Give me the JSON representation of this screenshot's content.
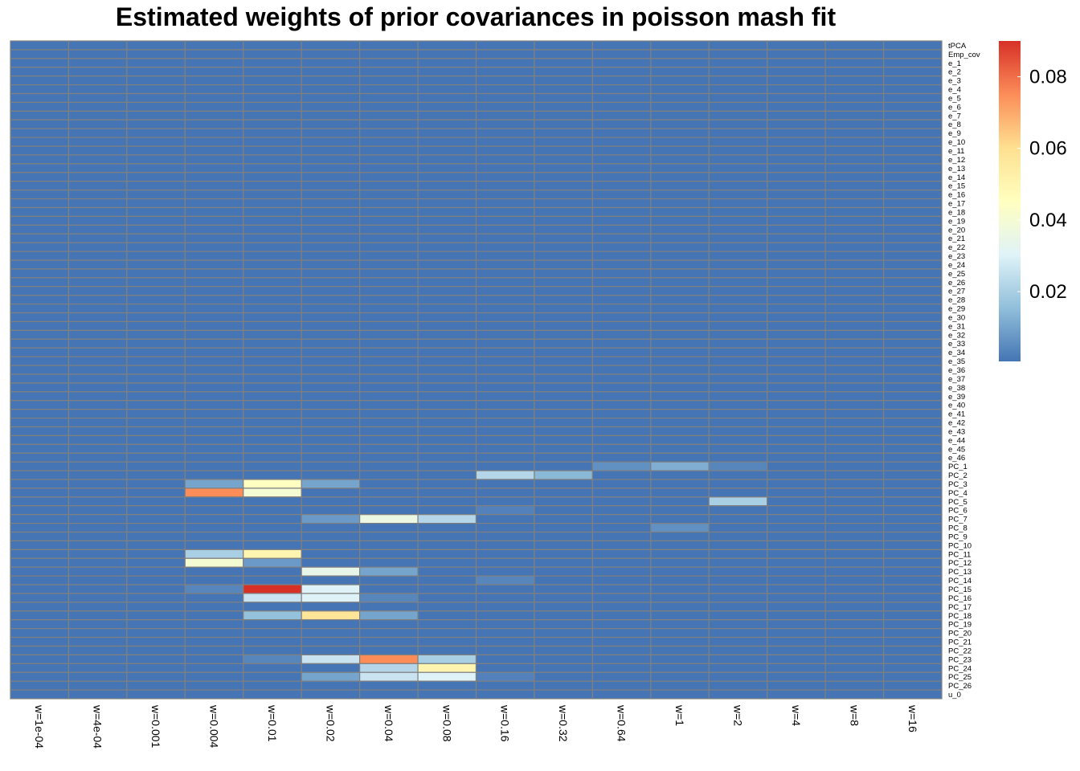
{
  "chart_data": {
    "type": "heatmap",
    "title": "Estimated weights of prior covariances in poisson mash fit",
    "columns": [
      "w=1e-04",
      "w=4e-04",
      "w=0.001",
      "w=0.004",
      "w=0.01",
      "w=0.02",
      "w=0.04",
      "w=0.08",
      "w=0.16",
      "w=0.32",
      "w=0.64",
      "w=1",
      "w=2",
      "w=4",
      "w=8",
      "w=16"
    ],
    "rows": [
      "tPCA",
      "Emp_cov",
      "e_1",
      "e_2",
      "e_3",
      "e_4",
      "e_5",
      "e_6",
      "e_7",
      "e_8",
      "e_9",
      "e_10",
      "e_11",
      "e_12",
      "e_13",
      "e_14",
      "e_15",
      "e_16",
      "e_17",
      "e_18",
      "e_19",
      "e_20",
      "e_21",
      "e_22",
      "e_23",
      "e_24",
      "e_25",
      "e_26",
      "e_27",
      "e_28",
      "e_29",
      "e_30",
      "e_31",
      "e_32",
      "e_33",
      "e_34",
      "e_35",
      "e_36",
      "e_37",
      "e_38",
      "e_39",
      "e_40",
      "e_41",
      "e_42",
      "e_43",
      "e_44",
      "e_45",
      "e_46",
      "PC_1",
      "PC_2",
      "PC_3",
      "PC_4",
      "PC_5",
      "PC_6",
      "PC_7",
      "PC_8",
      "PC_9",
      "PC_10",
      "PC_11",
      "PC_12",
      "PC_13",
      "PC_14",
      "PC_15",
      "PC_16",
      "PC_17",
      "PC_18",
      "PC_19",
      "PC_20",
      "PC_21",
      "PC_22",
      "PC_23",
      "PC_24",
      "PC_25",
      "PC_26",
      "u_0"
    ],
    "cells": [
      {
        "row": "PC_1",
        "col": "w=0.64",
        "value": 0.006
      },
      {
        "row": "PC_1",
        "col": "w=1",
        "value": 0.012
      },
      {
        "row": "PC_1",
        "col": "w=2",
        "value": 0.004
      },
      {
        "row": "PC_2",
        "col": "w=0.16",
        "value": 0.022
      },
      {
        "row": "PC_2",
        "col": "w=0.32",
        "value": 0.014
      },
      {
        "row": "PC_3",
        "col": "w=0.004",
        "value": 0.01
      },
      {
        "row": "PC_3",
        "col": "w=0.01",
        "value": 0.045
      },
      {
        "row": "PC_3",
        "col": "w=0.02",
        "value": 0.01
      },
      {
        "row": "PC_4",
        "col": "w=0.004",
        "value": 0.075
      },
      {
        "row": "PC_4",
        "col": "w=0.01",
        "value": 0.04
      },
      {
        "row": "PC_5",
        "col": "w=2",
        "value": 0.02
      },
      {
        "row": "PC_6",
        "col": "w=0.16",
        "value": 0.003
      },
      {
        "row": "PC_7",
        "col": "w=0.02",
        "value": 0.008
      },
      {
        "row": "PC_7",
        "col": "w=0.04",
        "value": 0.036
      },
      {
        "row": "PC_7",
        "col": "w=0.08",
        "value": 0.022
      },
      {
        "row": "PC_8",
        "col": "w=1",
        "value": 0.006
      },
      {
        "row": "PC_11",
        "col": "w=0.004",
        "value": 0.02
      },
      {
        "row": "PC_11",
        "col": "w=0.01",
        "value": 0.05
      },
      {
        "row": "PC_12",
        "col": "w=0.004",
        "value": 0.04
      },
      {
        "row": "PC_12",
        "col": "w=0.01",
        "value": 0.008
      },
      {
        "row": "PC_13",
        "col": "w=0.02",
        "value": 0.034
      },
      {
        "row": "PC_13",
        "col": "w=0.04",
        "value": 0.01
      },
      {
        "row": "PC_14",
        "col": "w=0.16",
        "value": 0.004
      },
      {
        "row": "PC_15",
        "col": "w=0.004",
        "value": 0.004
      },
      {
        "row": "PC_15",
        "col": "w=0.01",
        "value": 0.09
      },
      {
        "row": "PC_15",
        "col": "w=0.02",
        "value": 0.03
      },
      {
        "row": "PC_16",
        "col": "w=0.01",
        "value": 0.026
      },
      {
        "row": "PC_16",
        "col": "w=0.02",
        "value": 0.03
      },
      {
        "row": "PC_16",
        "col": "w=0.04",
        "value": 0.004
      },
      {
        "row": "PC_18",
        "col": "w=0.01",
        "value": 0.016
      },
      {
        "row": "PC_18",
        "col": "w=0.02",
        "value": 0.058
      },
      {
        "row": "PC_18",
        "col": "w=0.04",
        "value": 0.01
      },
      {
        "row": "PC_23",
        "col": "w=0.01",
        "value": 0.004
      },
      {
        "row": "PC_23",
        "col": "w=0.02",
        "value": 0.026
      },
      {
        "row": "PC_23",
        "col": "w=0.04",
        "value": 0.075
      },
      {
        "row": "PC_23",
        "col": "w=0.08",
        "value": 0.02
      },
      {
        "row": "PC_24",
        "col": "w=0.04",
        "value": 0.022
      },
      {
        "row": "PC_24",
        "col": "w=0.08",
        "value": 0.05
      },
      {
        "row": "PC_25",
        "col": "w=0.02",
        "value": 0.01
      },
      {
        "row": "PC_25",
        "col": "w=0.04",
        "value": 0.026
      },
      {
        "row": "PC_25",
        "col": "w=0.08",
        "value": 0.03
      },
      {
        "row": "PC_25",
        "col": "w=0.16",
        "value": 0.003
      }
    ],
    "default_value": 0.0005,
    "color_range": [
      0.0005,
      0.09
    ],
    "color_scale": [
      "#4575B4",
      "#91BFDB",
      "#E0F3F8",
      "#FFFFBF",
      "#FEE090",
      "#FC8D59",
      "#D73027"
    ],
    "cell_border_color": "#808080",
    "legend": {
      "position": "right",
      "ticks": [
        {
          "value": 0.02,
          "label": "0.02"
        },
        {
          "value": 0.04,
          "label": "0.04"
        },
        {
          "value": 0.06,
          "label": "0.06"
        },
        {
          "value": 0.08,
          "label": "0.08"
        }
      ]
    }
  }
}
